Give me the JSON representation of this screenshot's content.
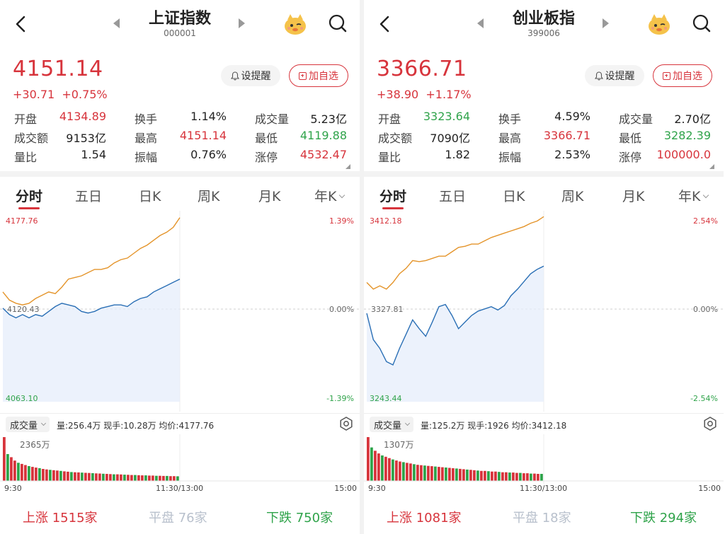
{
  "colors": {
    "up": "#d7343c",
    "down": "#2fa34a",
    "price_line": "#e4942a",
    "avg_line": "#2a6fb5",
    "fill": "#e6eefb"
  },
  "tabs": [
    "分时",
    "五日",
    "日K",
    "周K",
    "月K",
    "年K"
  ],
  "alert_label": "设提醒",
  "fav_label": "加自选",
  "volume_label": "成交量",
  "time_labels": {
    "start": "9:30",
    "mid": "11:30/13:00",
    "end": "15:00"
  },
  "panels": [
    {
      "title": "上证指数",
      "code": "000001",
      "price": "4151.14",
      "change": "+30.71",
      "change_pct": "+0.75%",
      "stats": [
        {
          "label": "开盘",
          "value": "4134.89",
          "tone": "up"
        },
        {
          "label": "换手",
          "value": "1.14%",
          "tone": ""
        },
        {
          "label": "成交量",
          "value": "5.23亿",
          "tone": ""
        },
        {
          "label": "成交额",
          "value": "9153亿",
          "tone": ""
        },
        {
          "label": "最高",
          "value": "4151.14",
          "tone": "up"
        },
        {
          "label": "最低",
          "value": "4119.88",
          "tone": "down"
        },
        {
          "label": "量比",
          "value": "1.54",
          "tone": ""
        },
        {
          "label": "振幅",
          "value": "0.76%",
          "tone": ""
        },
        {
          "label": "涨停",
          "value": "4532.47",
          "tone": "up"
        }
      ],
      "axis": {
        "high": "4177.76",
        "base": "4120.43",
        "low": "4063.10",
        "high_pct": "1.39%",
        "zero_pct": "0.00%",
        "low_pct": "-1.39%"
      },
      "volume_info": "量:256.4万  现手:10.28万  均价:4177.76",
      "volume_max": "2365万",
      "breadth": {
        "up_label": "上涨",
        "up": "1515家",
        "flat_label": "平盘",
        "flat": "76家",
        "down_label": "下跌",
        "down": "750家"
      },
      "chart_data": {
        "type": "line",
        "x_range": [
          "9:30",
          "15:00"
        ],
        "ylim": [
          4063.1,
          4177.76
        ],
        "base": 4120.43,
        "series": [
          {
            "values": [
              4131,
              4126,
              4124,
              4123,
              4124,
              4127,
              4129,
              4131,
              4130,
              4134,
              4139,
              4140,
              4141,
              4143,
              4145,
              4145,
              4146,
              4149,
              4151,
              4152,
              4155,
              4158,
              4160,
              4163,
              4166,
              4168,
              4171,
              4177
            ]
          },
          {
            "values": [
              4121,
              4117,
              4115,
              4117,
              4115,
              4117,
              4116,
              4119,
              4122,
              4124,
              4123,
              4122,
              4119,
              4118,
              4119,
              4121,
              4122,
              4123,
              4123,
              4122,
              4125,
              4127,
              4128,
              4131,
              4133,
              4135,
              4137,
              4139
            ]
          }
        ],
        "volume": [
          2365,
          1450,
          1280,
          1100,
          980,
          920,
          860,
          800,
          760,
          720,
          690,
          650,
          620,
          600,
          580,
          560,
          540,
          520,
          500,
          480,
          470,
          460,
          450,
          440,
          430,
          420,
          410,
          400,
          390,
          380,
          370,
          360,
          360,
          350,
          340,
          330,
          320,
          320,
          310,
          300,
          300,
          290,
          290,
          280,
          280,
          270,
          270,
          260,
          260,
          250
        ]
      }
    },
    {
      "title": "创业板指",
      "code": "399006",
      "price": "3366.71",
      "change": "+38.90",
      "change_pct": "+1.17%",
      "stats": [
        {
          "label": "开盘",
          "value": "3323.64",
          "tone": "down"
        },
        {
          "label": "换手",
          "value": "4.59%",
          "tone": ""
        },
        {
          "label": "成交量",
          "value": "2.70亿",
          "tone": ""
        },
        {
          "label": "成交额",
          "value": "7090亿",
          "tone": ""
        },
        {
          "label": "最高",
          "value": "3366.71",
          "tone": "up"
        },
        {
          "label": "最低",
          "value": "3282.39",
          "tone": "down"
        },
        {
          "label": "量比",
          "value": "1.82",
          "tone": ""
        },
        {
          "label": "振幅",
          "value": "2.53%",
          "tone": ""
        },
        {
          "label": "涨停",
          "value": "100000.0",
          "tone": "up"
        }
      ],
      "axis": {
        "high": "3412.18",
        "base": "3327.81",
        "low": "3243.44",
        "high_pct": "2.54%",
        "zero_pct": "0.00%",
        "low_pct": "-2.54%"
      },
      "volume_info": "量:125.2万  现手:1926  均价:3412.18",
      "volume_max": "1307万",
      "breadth": {
        "up_label": "上涨",
        "up": "1081家",
        "flat_label": "平盘",
        "flat": "18家",
        "down_label": "下跌",
        "down": "294家"
      },
      "chart_data": {
        "type": "line",
        "x_range": [
          "9:30",
          "15:00"
        ],
        "ylim": [
          3243.44,
          3412.18
        ],
        "base": 3327.81,
        "series": [
          {
            "values": [
              3352,
              3346,
              3349,
              3346,
              3352,
              3360,
              3365,
              3372,
              3371,
              3372,
              3374,
              3376,
              3376,
              3380,
              3384,
              3385,
              3387,
              3387,
              3390,
              3393,
              3395,
              3397,
              3399,
              3401,
              3403,
              3406,
              3408,
              3412
            ]
          },
          {
            "values": [
              3324,
              3300,
              3292,
              3280,
              3277,
              3292,
              3305,
              3318,
              3310,
              3303,
              3316,
              3330,
              3332,
              3322,
              3310,
              3316,
              3322,
              3326,
              3328,
              3330,
              3327,
              3331,
              3340,
              3346,
              3353,
              3360,
              3364,
              3367
            ]
          }
        ],
        "volume": [
          1307,
          1000,
          900,
          820,
          760,
          720,
          680,
          640,
          610,
          580,
          560,
          540,
          520,
          500,
          480,
          470,
          460,
          450,
          440,
          430,
          420,
          410,
          400,
          390,
          380,
          370,
          360,
          350,
          340,
          330,
          320,
          310,
          300,
          300,
          290,
          280,
          280,
          270,
          260,
          260,
          250,
          250,
          240,
          240,
          230,
          230,
          220,
          220,
          210,
          210
        ]
      }
    }
  ]
}
